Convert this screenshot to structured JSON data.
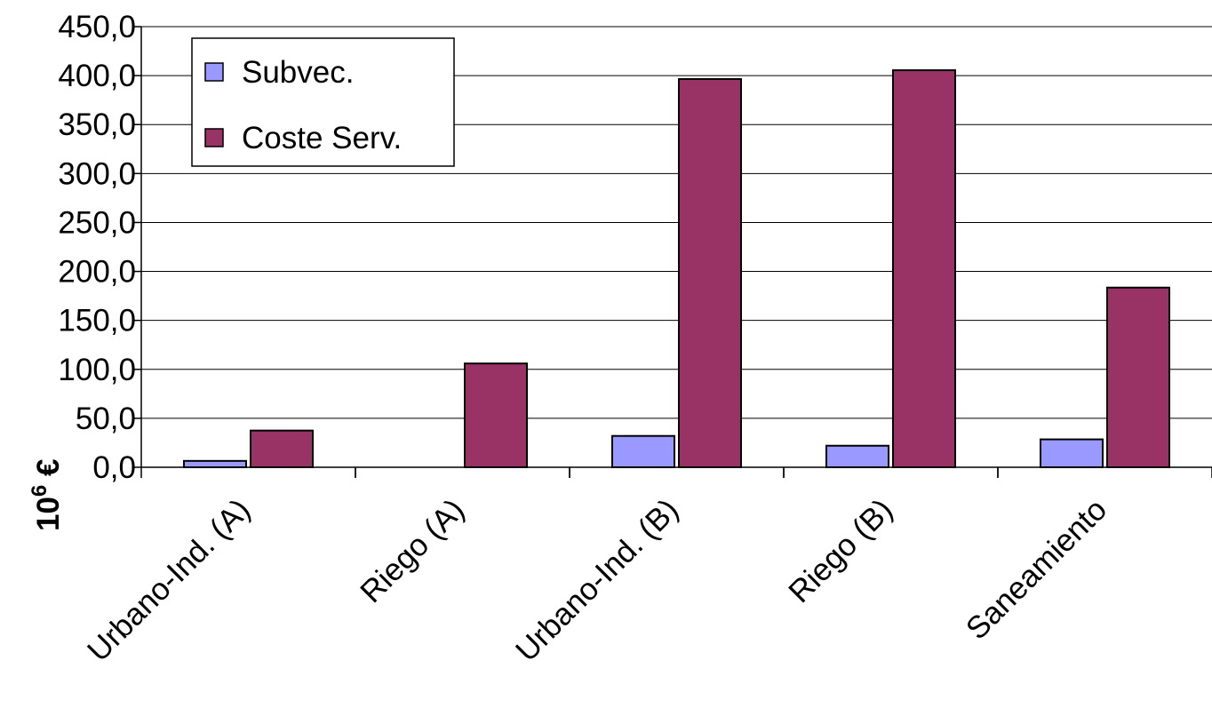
{
  "chart_data": {
    "type": "bar",
    "categories": [
      "Urbano-Ind. (A)",
      "Riego (A)",
      "Urbano-Ind. (B)",
      "Riego (B)",
      "Saneamiento"
    ],
    "series": [
      {
        "name": "Subvec.",
        "values": [
          6.5,
          0.0,
          32.0,
          22.0,
          28.5
        ],
        "color": "#9999FF"
      },
      {
        "name": "Coste Serv.",
        "values": [
          37.5,
          106.0,
          396.5,
          405.5,
          183.5
        ],
        "color": "#993366"
      }
    ],
    "ylabel_base": "10",
    "ylabel_exp": "6",
    "ylabel_unit": " €",
    "ylim": [
      0,
      450
    ],
    "yticks": [
      "0,0",
      "50,0",
      "100,0",
      "150,0",
      "200,0",
      "250,0",
      "300,0",
      "350,0",
      "400,0",
      "450,0"
    ],
    "grid": true,
    "legend_position": "top-left"
  }
}
